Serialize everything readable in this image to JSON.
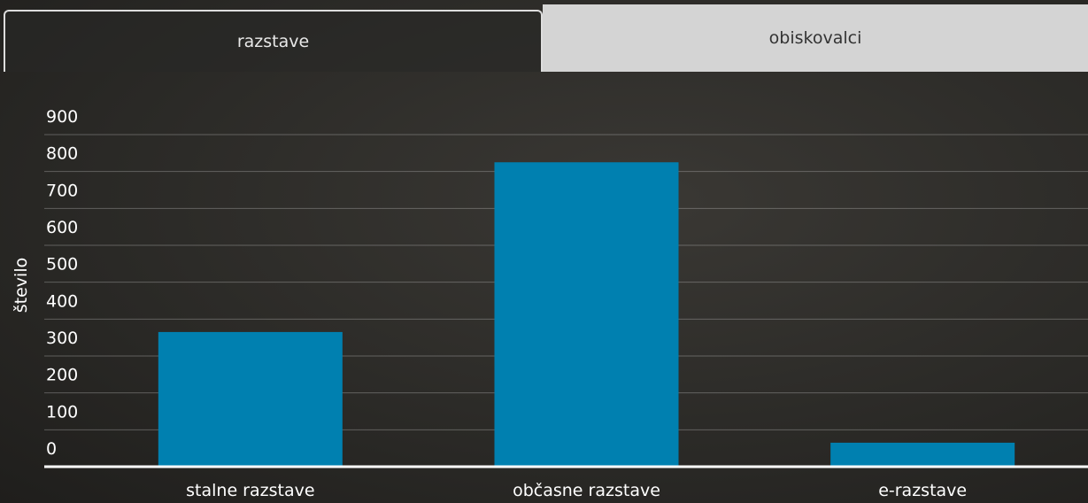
{
  "tabs": [
    "razstave",
    "obiskovalci"
  ],
  "chart_data": {
    "type": "bar",
    "y_label": "število",
    "categories": [
      "stalne razstave",
      "občasne razstave",
      "e-razstave"
    ],
    "values": [
      365,
      825,
      65
    ],
    "color": "#0080b0",
    "ylim": [
      0,
      900
    ],
    "yticks": [
      0,
      100,
      200,
      300,
      400,
      500,
      600,
      700,
      800,
      900
    ],
    "grid": true
  }
}
